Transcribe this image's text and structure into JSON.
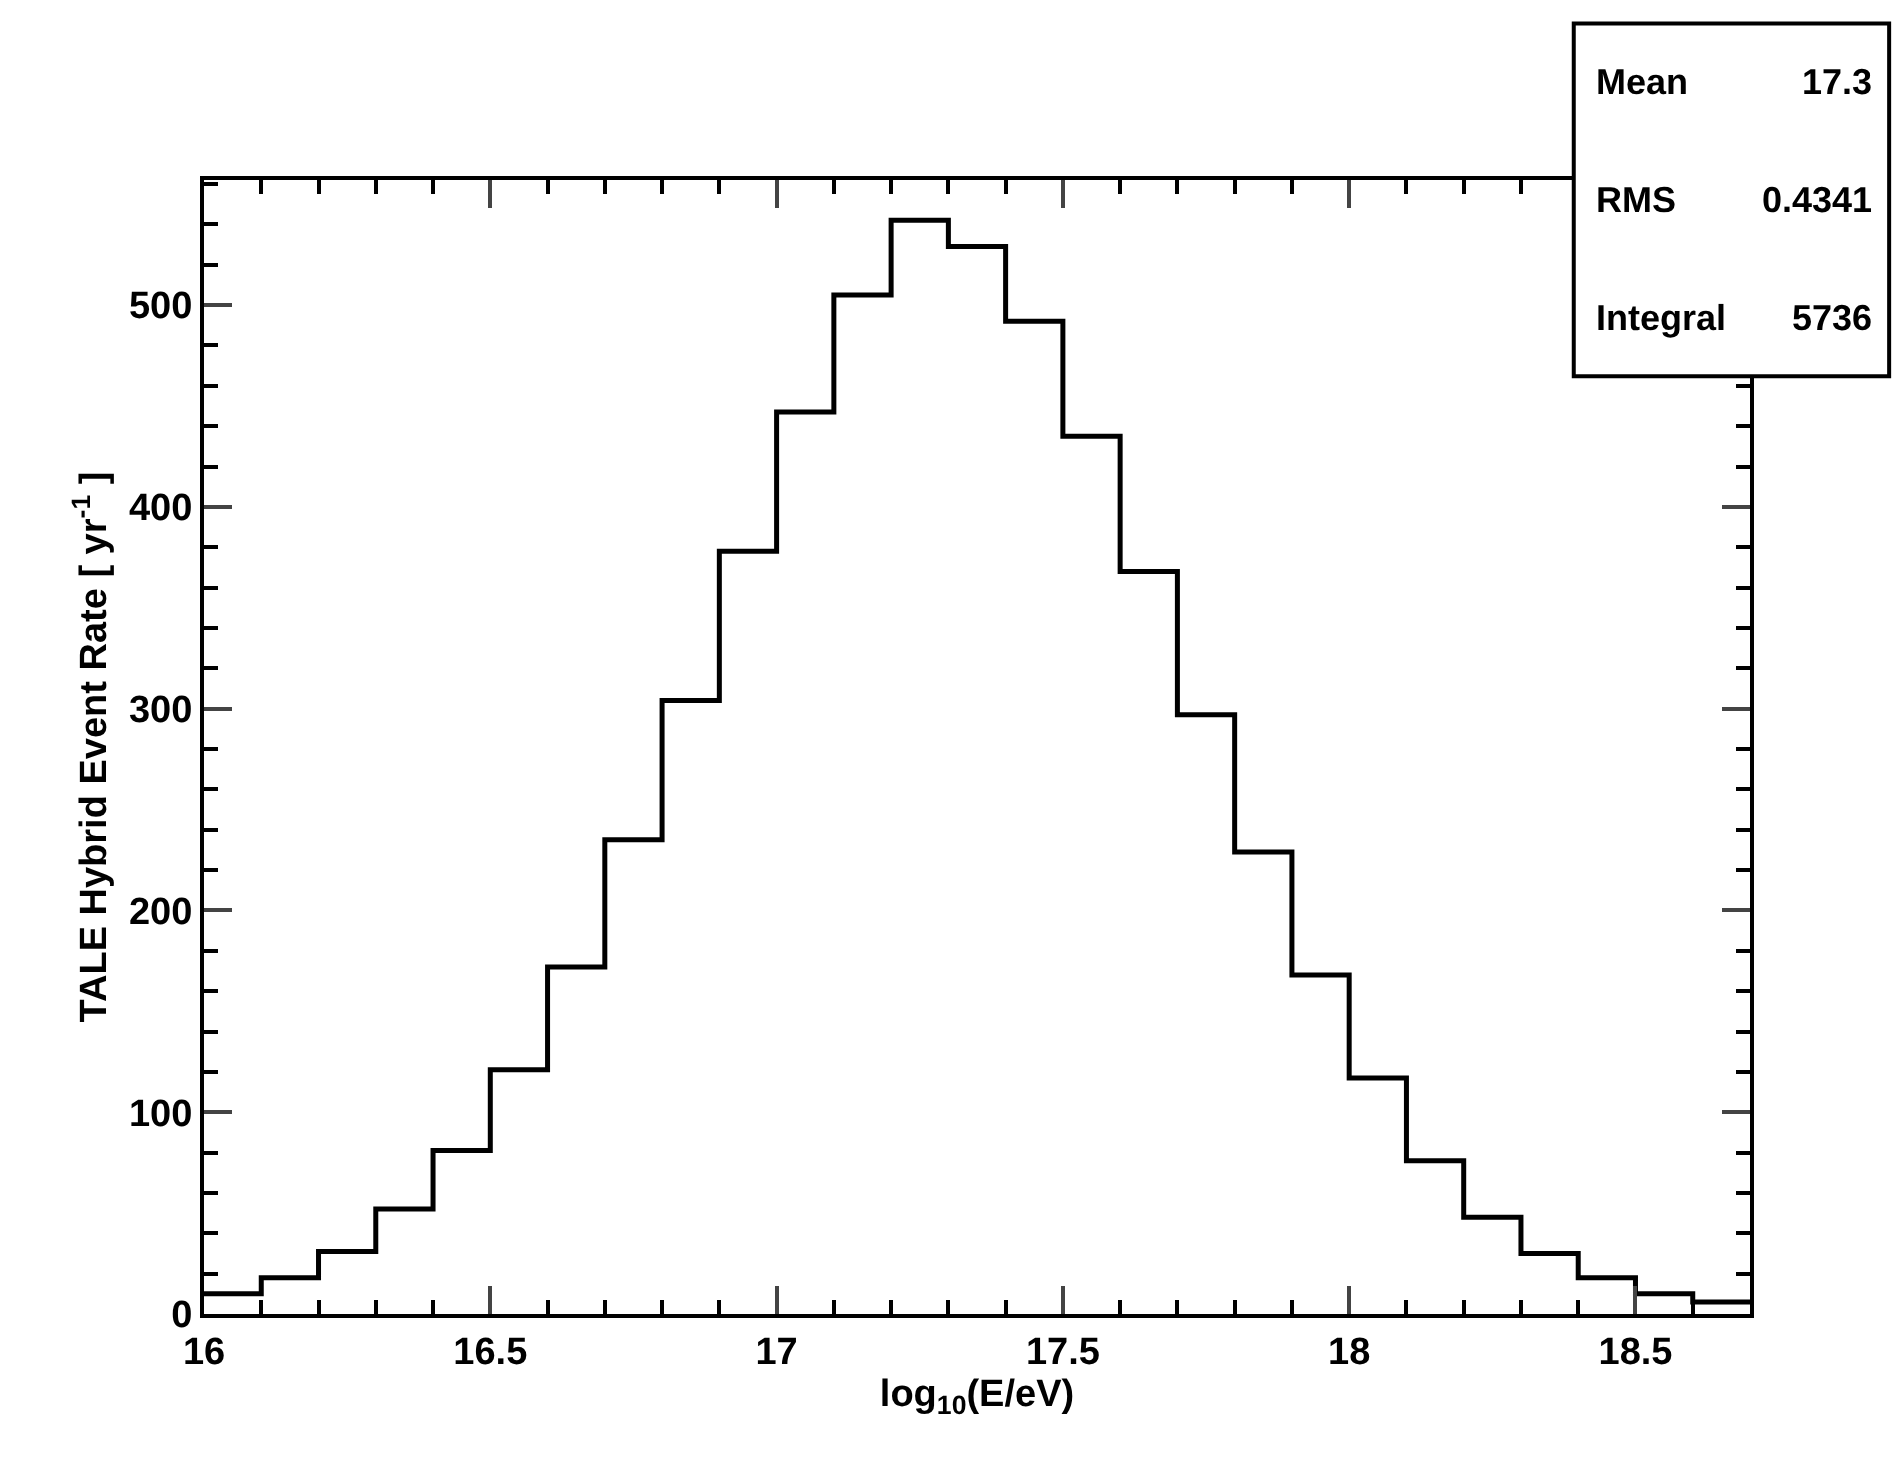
{
  "chart_data": {
    "type": "histogram",
    "xlabel": "log$_{10}$(E/eV)",
    "ylabel": "TALE Hybrid Event Rate [ yr$^{-1}$ ]",
    "bins": [
      16.0,
      16.1,
      16.2,
      16.3,
      16.4,
      16.5,
      16.6,
      16.7,
      16.8,
      16.9,
      17.0,
      17.1,
      17.2,
      17.3,
      17.4,
      17.5,
      17.6,
      17.7,
      17.8,
      17.9,
      18.0,
      18.1,
      18.2,
      18.3,
      18.4,
      18.5,
      18.6,
      18.7
    ],
    "values": [
      10,
      18,
      31,
      52,
      81,
      121,
      172,
      235,
      304,
      378,
      447,
      505,
      542,
      529,
      492,
      435,
      368,
      297,
      229,
      168,
      117,
      76,
      48,
      30,
      18,
      10,
      6
    ],
    "color": "#000000",
    "xlim": [
      16,
      18.7
    ],
    "xticks": [
      16,
      16.5,
      17,
      17.5,
      18,
      18.5
    ],
    "ylim": [
      0,
      562
    ],
    "yticks": [
      0,
      100,
      200,
      300,
      400,
      500
    ],
    "annotations": [
      "Mean",
      "17.3",
      "RMS",
      "0.4341",
      "Integral",
      "5736"
    ]
  }
}
